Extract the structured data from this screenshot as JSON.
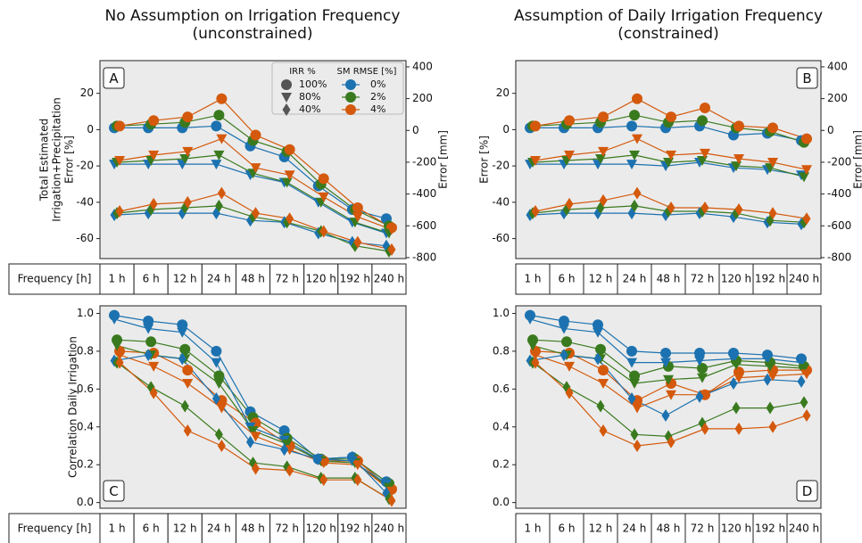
{
  "styles": {
    "markers": [
      {
        "label": "100%",
        "marker": "circle"
      },
      {
        "label": "80%",
        "marker": "triangle"
      },
      {
        "label": "40%",
        "marker": "diamond"
      }
    ],
    "colors": [
      {
        "label": "0%",
        "color": "#1c72b0"
      },
      {
        "label": "2%",
        "color": "#3a7a1f"
      },
      {
        "label": "4%",
        "color": "#d4590c"
      }
    ]
  },
  "chart_data": [
    {
      "type": "line",
      "panel_label": "A",
      "panel_label_corner": "top-left",
      "title": "No Assumption on Irrigation Frequency",
      "subtitle": "(unconstrained)",
      "ylabel": [
        "Total Estimated",
        "Irrigation+Precipitation",
        "Error [%]"
      ],
      "y2label": "Error [mm]",
      "xlabel": "Frequency [h]",
      "categories": [
        "1 h",
        "6 h",
        "12 h",
        "24 h",
        "48 h",
        "72 h",
        "120 h",
        "192 h",
        "240 h"
      ],
      "ylim": [
        -71,
        38
      ],
      "yticks": [
        20,
        0,
        -20,
        -40,
        -60
      ],
      "y2lim": [
        -806,
        439
      ],
      "y2ticks": [
        400,
        200,
        0,
        -200,
        -400,
        -600,
        -800
      ],
      "legend": {
        "marker_title": "IRR %",
        "color_title": "SM RMSE [%]",
        "corner": "top-right"
      },
      "series": [
        {
          "irr": "100%",
          "sm": "0%",
          "values": [
            1,
            1,
            1,
            2,
            -9,
            -15,
            -31,
            -44,
            -49
          ]
        },
        {
          "irr": "100%",
          "sm": "2%",
          "values": [
            2,
            3,
            4,
            8,
            -6,
            -12,
            -30,
            -44,
            -53
          ]
        },
        {
          "irr": "100%",
          "sm": "4%",
          "values": [
            2,
            5,
            7,
            17,
            -3,
            -11,
            -27,
            -43,
            -54
          ]
        },
        {
          "irr": "80%",
          "sm": "0%",
          "values": [
            -19,
            -19,
            -19,
            -19,
            -25,
            -29,
            -40,
            -51,
            -57
          ]
        },
        {
          "irr": "80%",
          "sm": "2%",
          "values": [
            -18,
            -17,
            -16,
            -14,
            -24,
            -29,
            -40,
            -51,
            -57
          ]
        },
        {
          "irr": "80%",
          "sm": "4%",
          "values": [
            -17,
            -14,
            -12,
            -5,
            -21,
            -25,
            -37,
            -48,
            -55
          ]
        },
        {
          "irr": "40%",
          "sm": "0%",
          "values": [
            -47,
            -46,
            -46,
            -46,
            -50,
            -51,
            -57,
            -62,
            -64
          ]
        },
        {
          "irr": "40%",
          "sm": "2%",
          "values": [
            -46,
            -44,
            -43,
            -42,
            -48,
            -51,
            -56,
            -64,
            -67
          ]
        },
        {
          "irr": "40%",
          "sm": "4%",
          "values": [
            -45,
            -41,
            -40,
            -35,
            -46,
            -49,
            -56,
            -62,
            -66
          ]
        }
      ]
    },
    {
      "type": "line",
      "panel_label": "B",
      "panel_label_corner": "top-right",
      "title": "Assumption of Daily Irrigation Frequency",
      "subtitle": "(constrained)",
      "ylabel": [
        "Error [%]"
      ],
      "y2label": "Error [mm]",
      "categories": [
        "1 h",
        "6 h",
        "12 h",
        "24 h",
        "48 h",
        "72 h",
        "120 h",
        "192 h",
        "240 h"
      ],
      "ylim": [
        -71,
        38
      ],
      "yticks": [
        20,
        0,
        -20,
        -40,
        -60
      ],
      "y2lim": [
        -806,
        439
      ],
      "y2ticks": [
        400,
        200,
        0,
        -200,
        -400,
        -600,
        -800
      ],
      "series": [
        {
          "irr": "100%",
          "sm": "0%",
          "values": [
            1,
            1,
            1,
            2,
            1,
            2,
            -3,
            -2,
            -6
          ]
        },
        {
          "irr": "100%",
          "sm": "2%",
          "values": [
            2,
            3,
            4,
            8,
            4,
            5,
            1,
            -1,
            -7
          ]
        },
        {
          "irr": "100%",
          "sm": "4%",
          "values": [
            2,
            5,
            7,
            17,
            7,
            12,
            2,
            1,
            -5
          ]
        },
        {
          "irr": "80%",
          "sm": "0%",
          "values": [
            -19,
            -19,
            -19,
            -19,
            -20,
            -18,
            -21,
            -22,
            -25
          ]
        },
        {
          "irr": "80%",
          "sm": "2%",
          "values": [
            -18,
            -17,
            -16,
            -14,
            -18,
            -17,
            -20,
            -21,
            -26
          ]
        },
        {
          "irr": "80%",
          "sm": "4%",
          "values": [
            -17,
            -14,
            -12,
            -5,
            -14,
            -13,
            -16,
            -18,
            -22
          ]
        },
        {
          "irr": "40%",
          "sm": "0%",
          "values": [
            -47,
            -46,
            -46,
            -46,
            -47,
            -46,
            -48,
            -51,
            -52
          ]
        },
        {
          "irr": "40%",
          "sm": "2%",
          "values": [
            -46,
            -44,
            -43,
            -42,
            -45,
            -45,
            -46,
            -50,
            -51
          ]
        },
        {
          "irr": "40%",
          "sm": "4%",
          "values": [
            -45,
            -41,
            -39,
            -35,
            -43,
            -43,
            -44,
            -46,
            -49
          ]
        }
      ]
    },
    {
      "type": "line",
      "panel_label": "C",
      "panel_label_corner": "bottom-left",
      "ylabel": [
        "Correlation Daily Irrigation"
      ],
      "xlabel": "Frequency [h]",
      "categories": [
        "1 h",
        "6 h",
        "12 h",
        "24 h",
        "48 h",
        "72 h",
        "120 h",
        "192 h",
        "240 h"
      ],
      "ylim": [
        -0.03,
        1.04
      ],
      "yticks": [
        {
          "value": 0,
          "label": "0.0"
        },
        0.2,
        0.4,
        0.6,
        0.8,
        {
          "value": 1,
          "label": "1.0"
        }
      ],
      "series": [
        {
          "irr": "100%",
          "sm": "0%",
          "values": [
            0.99,
            0.96,
            0.94,
            0.8,
            0.48,
            0.38,
            0.23,
            0.24,
            0.11
          ]
        },
        {
          "irr": "100%",
          "sm": "2%",
          "values": [
            0.86,
            0.85,
            0.81,
            0.67,
            0.45,
            0.34,
            0.23,
            0.23,
            0.1
          ]
        },
        {
          "irr": "100%",
          "sm": "4%",
          "values": [
            0.8,
            0.79,
            0.7,
            0.54,
            0.42,
            0.3,
            0.22,
            0.22,
            0.07
          ]
        },
        {
          "irr": "80%",
          "sm": "0%",
          "values": [
            0.97,
            0.92,
            0.9,
            0.74,
            0.4,
            0.33,
            0.23,
            0.22,
            0.1
          ]
        },
        {
          "irr": "80%",
          "sm": "2%",
          "values": [
            0.83,
            0.78,
            0.76,
            0.63,
            0.38,
            0.31,
            0.22,
            0.21,
            0.08
          ]
        },
        {
          "irr": "80%",
          "sm": "4%",
          "values": [
            0.78,
            0.72,
            0.63,
            0.5,
            0.35,
            0.28,
            0.21,
            0.2,
            0.06
          ]
        },
        {
          "irr": "40%",
          "sm": "0%",
          "values": [
            0.75,
            0.78,
            0.76,
            0.55,
            0.32,
            0.28,
            0.23,
            0.24,
            0.05
          ]
        },
        {
          "irr": "40%",
          "sm": "2%",
          "values": [
            0.74,
            0.61,
            0.51,
            0.36,
            0.21,
            0.19,
            0.13,
            0.13,
            0.02
          ]
        },
        {
          "irr": "40%",
          "sm": "4%",
          "values": [
            0.74,
            0.58,
            0.38,
            0.3,
            0.18,
            0.17,
            0.12,
            0.12,
            0.01
          ]
        }
      ]
    },
    {
      "type": "line",
      "panel_label": "D",
      "panel_label_corner": "bottom-right",
      "categories": [
        "1 h",
        "6 h",
        "12 h",
        "24 h",
        "48 h",
        "72 h",
        "120 h",
        "192 h",
        "240 h"
      ],
      "ylim": [
        -0.03,
        1.04
      ],
      "yticks": [
        {
          "value": 0,
          "label": "0.0"
        },
        0.2,
        0.4,
        0.6,
        0.8,
        {
          "value": 1,
          "label": "1.0"
        }
      ],
      "series": [
        {
          "irr": "100%",
          "sm": "0%",
          "values": [
            0.99,
            0.96,
            0.94,
            0.8,
            0.79,
            0.79,
            0.79,
            0.78,
            0.76
          ]
        },
        {
          "irr": "100%",
          "sm": "2%",
          "values": [
            0.86,
            0.85,
            0.81,
            0.67,
            0.72,
            0.71,
            0.75,
            0.74,
            0.72
          ]
        },
        {
          "irr": "100%",
          "sm": "4%",
          "values": [
            0.8,
            0.79,
            0.7,
            0.54,
            0.63,
            0.57,
            0.69,
            0.7,
            0.7
          ]
        },
        {
          "irr": "80%",
          "sm": "0%",
          "values": [
            0.97,
            0.92,
            0.9,
            0.74,
            0.74,
            0.75,
            0.76,
            0.76,
            0.74
          ]
        },
        {
          "irr": "80%",
          "sm": "2%",
          "values": [
            0.83,
            0.78,
            0.76,
            0.63,
            0.65,
            0.66,
            0.73,
            0.72,
            0.71
          ]
        },
        {
          "irr": "80%",
          "sm": "4%",
          "values": [
            0.78,
            0.72,
            0.63,
            0.5,
            0.57,
            0.57,
            0.66,
            0.67,
            0.68
          ]
        },
        {
          "irr": "40%",
          "sm": "0%",
          "values": [
            0.75,
            0.78,
            0.76,
            0.55,
            0.46,
            0.56,
            0.63,
            0.65,
            0.64
          ]
        },
        {
          "irr": "40%",
          "sm": "2%",
          "values": [
            0.74,
            0.61,
            0.51,
            0.36,
            0.35,
            0.42,
            0.5,
            0.5,
            0.53
          ]
        },
        {
          "irr": "40%",
          "sm": "4%",
          "values": [
            0.74,
            0.58,
            0.38,
            0.3,
            0.32,
            0.39,
            0.39,
            0.4,
            0.46
          ]
        }
      ]
    }
  ]
}
